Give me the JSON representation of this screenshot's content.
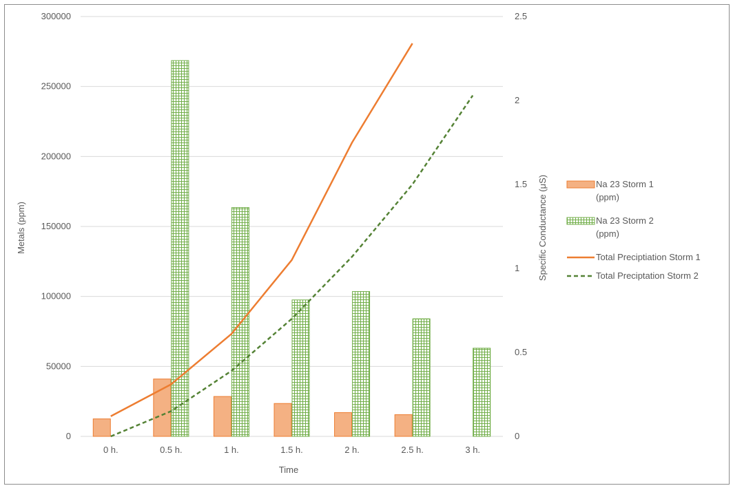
{
  "chart_data": {
    "type": "bar",
    "categories": [
      "0 h.",
      "0.5 h.",
      "1 h.",
      "1.5 h.",
      "2 h.",
      "2.5 h.",
      "3 h."
    ],
    "xlabel": "Time",
    "ylabel": "Metals (ppm)",
    "y2label": "Specific Conductance (μS)",
    "ylim": [
      0,
      300000
    ],
    "y_ticks": [
      "0",
      "50000",
      "100000",
      "150000",
      "200000",
      "250000",
      "300000"
    ],
    "y2lim": [
      0,
      2.5
    ],
    "y2_ticks": [
      "0",
      "0.5",
      "1",
      "1.5",
      "2",
      "2.5"
    ],
    "grid": true,
    "legend_position": "right",
    "series": [
      {
        "name": "Na 23 Storm 1 (ppm)",
        "legend_lines": [
          "Na 23 Storm 1",
          "(ppm)"
        ],
        "kind": "bar",
        "axis": "left",
        "color": "#f4b183",
        "stroke": "#ed7d31",
        "values": [
          12500,
          41000,
          28500,
          23500,
          17000,
          15500,
          null
        ]
      },
      {
        "name": "Na 23 Storm 2 (ppm)",
        "legend_lines": [
          "Na 23 Storm 2",
          "(ppm)"
        ],
        "kind": "bar",
        "axis": "left",
        "pattern": "grid",
        "color": "#70ad47",
        "values": [
          null,
          268500,
          163500,
          97500,
          103500,
          84000,
          63000
        ]
      },
      {
        "name": "Total Preciptiation Storm 1",
        "legend_lines": [
          "Total Preciptiation Storm 1"
        ],
        "kind": "line",
        "axis": "right",
        "color": "#ed7d31",
        "dash": "solid",
        "values": [
          0.12,
          0.31,
          0.61,
          1.05,
          1.75,
          2.34,
          null
        ]
      },
      {
        "name": "Total Preciptation Storm 2",
        "legend_lines": [
          "Total Preciptation Storm 2"
        ],
        "kind": "line",
        "axis": "right",
        "color": "#548235",
        "dash": "dashed",
        "values": [
          0.0,
          0.15,
          0.39,
          0.7,
          1.07,
          1.5,
          2.03
        ]
      }
    ]
  }
}
